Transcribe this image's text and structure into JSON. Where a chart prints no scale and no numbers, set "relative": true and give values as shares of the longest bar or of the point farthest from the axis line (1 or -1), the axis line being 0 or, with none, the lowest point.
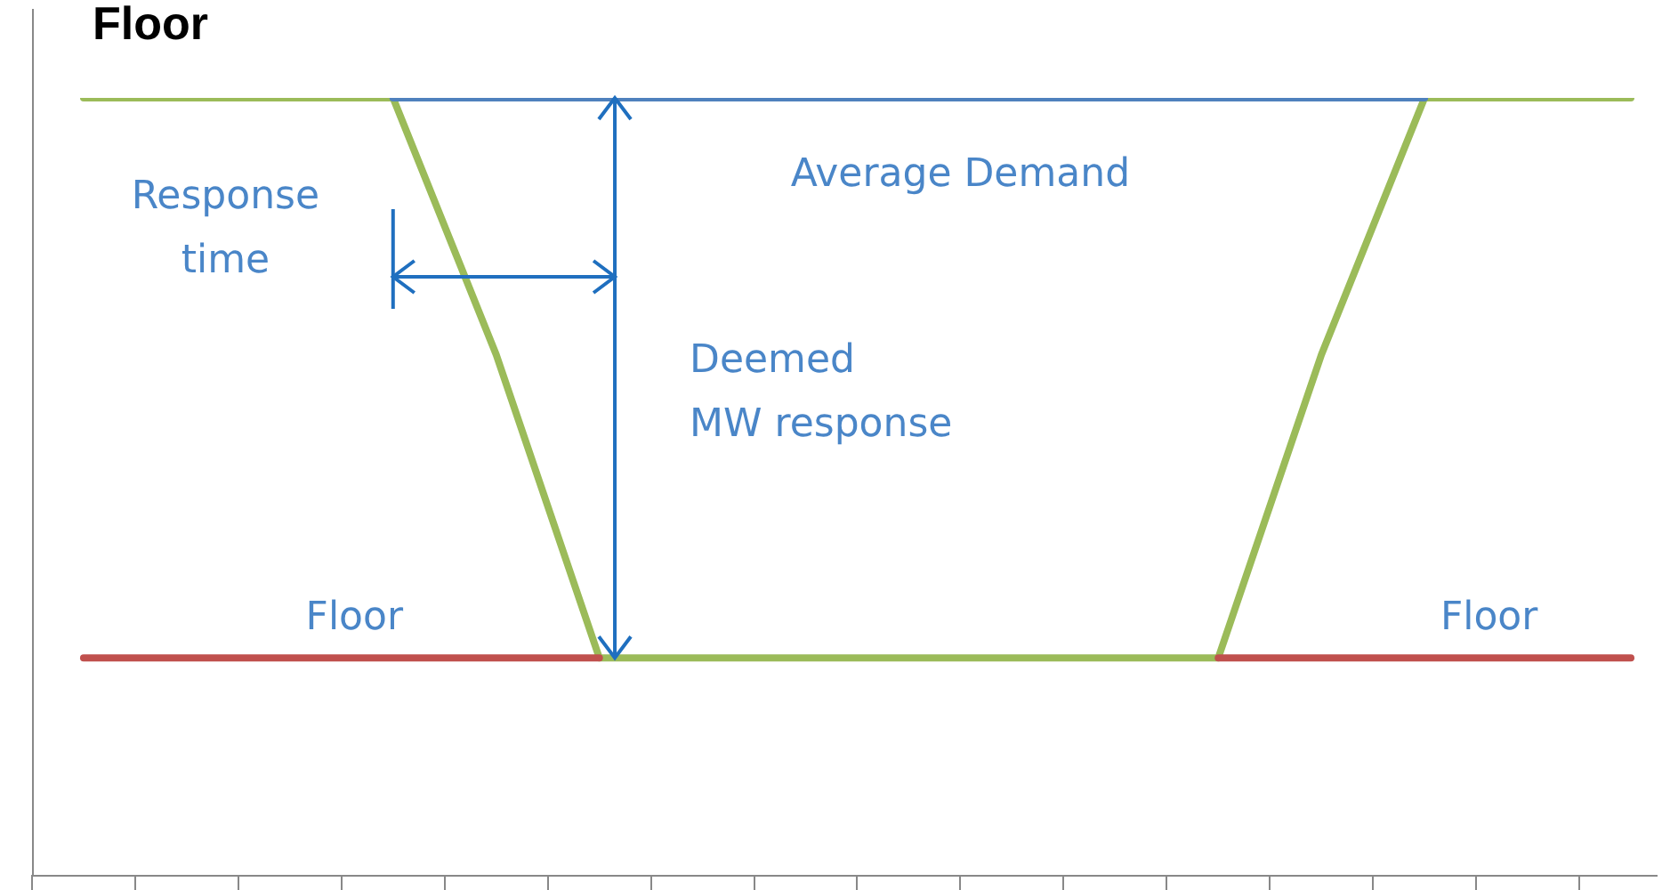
{
  "chart_data": {
    "type": "line",
    "title": "Floor",
    "relative": true,
    "legend": false,
    "grid": false,
    "marker": "none",
    "line_style": "solid",
    "categories": [
      null,
      null,
      null,
      null,
      null,
      null,
      null,
      null,
      null,
      null,
      null,
      null,
      null,
      null,
      null,
      null,
      null,
      null,
      null,
      null,
      null,
      null,
      null,
      null,
      null,
      null,
      null,
      null,
      null,
      null,
      null,
      null,
      null,
      null,
      null,
      null,
      null,
      null,
      null,
      null,
      null,
      null,
      null,
      null,
      null,
      null,
      null,
      null,
      null,
      null,
      null,
      null,
      null,
      null,
      null,
      null,
      null,
      null,
      null,
      null,
      null,
      null,
      null,
      null
    ],
    "series": [
      {
        "color": "#c0504d",
        "values": [
          null,
          null,
          0.28,
          null,
          null,
          null,
          null,
          null,
          null,
          null,
          null,
          null,
          null,
          null,
          null,
          null,
          null,
          null,
          null,
          null,
          null,
          null,
          0.28,
          null,
          null,
          null,
          null,
          null,
          null,
          null,
          null,
          null,
          null,
          null,
          null,
          null,
          null,
          null,
          null,
          null,
          null,
          null,
          null,
          null,
          null,
          null,
          null,
          null,
          null,
          null,
          null,
          null,
          null,
          null,
          null,
          null,
          null,
          null,
          null,
          null,
          null,
          null,
          null,
          null
        ]
      },
      {
        "color": "#c0504d",
        "values": [
          null,
          null,
          null,
          null,
          null,
          null,
          null,
          null,
          null,
          null,
          null,
          null,
          null,
          null,
          null,
          null,
          null,
          null,
          null,
          null,
          null,
          null,
          null,
          null,
          null,
          null,
          null,
          null,
          null,
          null,
          null,
          null,
          null,
          null,
          null,
          null,
          null,
          null,
          null,
          null,
          null,
          null,
          null,
          null,
          null,
          null,
          0.28,
          null,
          null,
          null,
          null,
          null,
          null,
          null,
          null,
          null,
          null,
          null,
          null,
          null,
          null,
          null,
          0.28,
          null
        ]
      },
      {
        "color": "#4f81bd",
        "values": [
          null,
          null,
          null,
          null,
          null,
          null,
          null,
          null,
          null,
          null,
          null,
          null,
          null,
          null,
          1,
          null,
          null,
          null,
          null,
          null,
          null,
          null,
          null,
          null,
          null,
          null,
          null,
          null,
          null,
          null,
          null,
          null,
          null,
          null,
          null,
          null,
          null,
          null,
          null,
          null,
          null,
          null,
          null,
          null,
          null,
          null,
          null,
          null,
          null,
          null,
          null,
          null,
          null,
          null,
          1,
          null,
          null,
          null,
          null,
          null,
          null,
          null,
          null,
          null
        ]
      },
      {
        "color": "#9bbb59",
        "values": [
          null,
          null,
          1,
          null,
          null,
          null,
          null,
          null,
          null,
          null,
          null,
          null,
          null,
          null,
          1,
          null,
          null,
          null,
          0.67,
          null,
          null,
          null,
          0.28,
          null,
          null,
          null,
          null,
          null,
          null,
          null,
          null,
          null,
          null,
          null,
          null,
          null,
          null,
          null,
          null,
          null,
          null,
          null,
          null,
          null,
          null,
          null,
          0.28,
          null,
          null,
          null,
          0.67,
          null,
          null,
          null,
          1,
          null,
          null,
          null,
          null,
          null,
          null,
          null,
          1,
          null
        ]
      }
    ],
    "annotations": [
      "Average Demand",
      "Response\ntime",
      "Deemed\nMW response",
      "Floor",
      "Floor"
    ]
  }
}
